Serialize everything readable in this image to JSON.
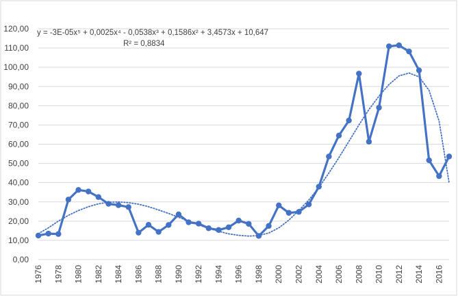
{
  "chart_data": {
    "type": "line",
    "grid": true,
    "ylim": [
      0,
      120
    ],
    "xlim": [
      1976,
      2017
    ],
    "y_ticks": [
      "0,00",
      "10,00",
      "20,00",
      "30,00",
      "40,00",
      "50,00",
      "60,00",
      "70,00",
      "80,00",
      "90,00",
      "100,00",
      "110,00",
      "120,00"
    ],
    "x_ticks": [
      "1976",
      "1978",
      "1980",
      "1982",
      "1984",
      "1986",
      "1988",
      "1990",
      "1992",
      "1994",
      "1996",
      "1998",
      "2000",
      "2002",
      "2004",
      "2006",
      "2008",
      "2010",
      "2012",
      "2014",
      "2016"
    ],
    "x": [
      1976,
      1977,
      1978,
      1979,
      1980,
      1981,
      1982,
      1983,
      1984,
      1985,
      1986,
      1987,
      1988,
      1989,
      1990,
      1991,
      1992,
      1993,
      1994,
      1995,
      1996,
      1997,
      1998,
      1999,
      2000,
      2001,
      2002,
      2003,
      2004,
      2005,
      2006,
      2007,
      2008,
      2009,
      2010,
      2011,
      2012,
      2013,
      2014,
      2015,
      2016,
      2017
    ],
    "series": [
      {
        "values": [
          12.5,
          13.5,
          13.3,
          31.2,
          36.2,
          35.4,
          32.5,
          29.0,
          28.3,
          27.3,
          14.0,
          18.1,
          14.4,
          18.0,
          23.5,
          19.4,
          18.7,
          16.3,
          15.4,
          16.8,
          20.3,
          18.6,
          12.3,
          17.5,
          28.2,
          24.3,
          24.8,
          28.7,
          37.9,
          53.6,
          64.5,
          72.3,
          96.7,
          61.3,
          79.0,
          110.9,
          111.4,
          108.2,
          98.4,
          51.6,
          43.4,
          53.6
        ],
        "color": "#4472c4"
      }
    ],
    "trendline": {
      "type": "polynomial",
      "degree": 5,
      "color": "#4472c4",
      "equation_label": "y = -3E-05x⁵ + 0,0025x⁴ - 0,0538x³ + 0,1586x² + 3,4573x + 10,647",
      "r2_label": "R² = 0,8834",
      "values": [
        13.5,
        16.5,
        20.0,
        23.0,
        25.5,
        27.5,
        29.0,
        29.8,
        30.0,
        29.6,
        28.8,
        27.5,
        25.8,
        24.0,
        22.0,
        20.0,
        18.0,
        16.2,
        14.7,
        13.4,
        12.6,
        12.2,
        12.5,
        13.8,
        16.5,
        20.5,
        25.5,
        31.0,
        37.5,
        45.0,
        53.0,
        61.5,
        70.0,
        78.0,
        85.0,
        91.0,
        95.5,
        97.0,
        95.0,
        88.0,
        72.0,
        40.0
      ]
    }
  }
}
